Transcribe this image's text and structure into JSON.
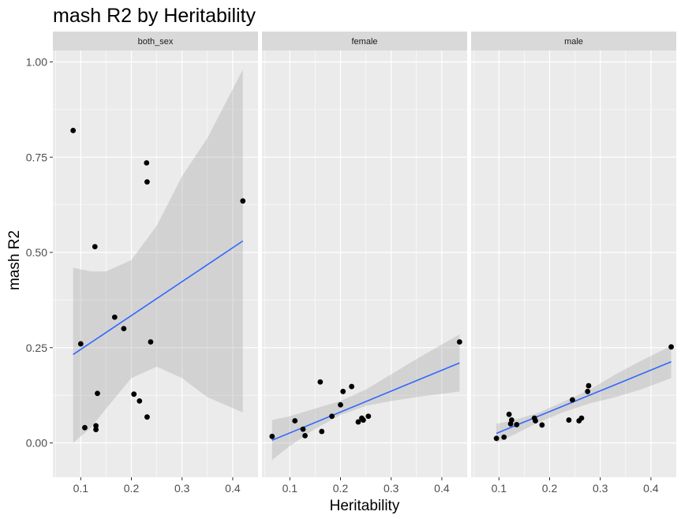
{
  "chart_data": {
    "type": "scatter",
    "title": "mash R2 by Heritability",
    "xlabel": "Heritability",
    "ylabel": "mash R2",
    "xlim": [
      0.045,
      0.45
    ],
    "ylim": [
      -0.09,
      1.03
    ],
    "x_ticks": [
      0.1,
      0.2,
      0.3,
      0.4
    ],
    "x_tick_labels": [
      "0.1",
      "0.2",
      "0.3",
      "0.4"
    ],
    "y_ticks": [
      0.0,
      0.25,
      0.5,
      0.75,
      1.0
    ],
    "y_tick_labels": [
      "0.00",
      "0.25",
      "0.50",
      "0.75",
      "1.00"
    ],
    "grid": true,
    "smooth": "linear fit with confidence band",
    "colors": {
      "panel_bg": "#ebebeb",
      "strip_bg": "#d9d9d9",
      "grid": "#ffffff",
      "point": "#000000",
      "line": "#3366ff",
      "band": "#999999"
    },
    "panels": [
      {
        "name": "both_sex",
        "points": [
          {
            "x": 0.085,
            "y": 0.82
          },
          {
            "x": 0.1,
            "y": 0.26
          },
          {
            "x": 0.108,
            "y": 0.04
          },
          {
            "x": 0.128,
            "y": 0.515
          },
          {
            "x": 0.13,
            "y": 0.045
          },
          {
            "x": 0.13,
            "y": 0.035
          },
          {
            "x": 0.133,
            "y": 0.13
          },
          {
            "x": 0.167,
            "y": 0.33
          },
          {
            "x": 0.185,
            "y": 0.3
          },
          {
            "x": 0.205,
            "y": 0.128
          },
          {
            "x": 0.216,
            "y": 0.11
          },
          {
            "x": 0.23,
            "y": 0.735
          },
          {
            "x": 0.231,
            "y": 0.685
          },
          {
            "x": 0.231,
            "y": 0.068
          },
          {
            "x": 0.238,
            "y": 0.265
          },
          {
            "x": 0.42,
            "y": 0.635
          }
        ],
        "fit": {
          "x": [
            0.085,
            0.42
          ],
          "y": [
            0.232,
            0.53
          ]
        },
        "band": {
          "x": [
            0.085,
            0.12,
            0.15,
            0.2,
            0.25,
            0.3,
            0.35,
            0.42
          ],
          "upper": [
            0.46,
            0.45,
            0.45,
            0.48,
            0.57,
            0.7,
            0.8,
            0.98
          ],
          "lower": [
            0.0,
            0.04,
            0.09,
            0.17,
            0.2,
            0.17,
            0.12,
            0.08
          ]
        }
      },
      {
        "name": "female",
        "points": [
          {
            "x": 0.065,
            "y": 0.017
          },
          {
            "x": 0.11,
            "y": 0.058
          },
          {
            "x": 0.126,
            "y": 0.036
          },
          {
            "x": 0.13,
            "y": 0.019
          },
          {
            "x": 0.16,
            "y": 0.16
          },
          {
            "x": 0.163,
            "y": 0.03
          },
          {
            "x": 0.183,
            "y": 0.07
          },
          {
            "x": 0.2,
            "y": 0.1
          },
          {
            "x": 0.205,
            "y": 0.135
          },
          {
            "x": 0.222,
            "y": 0.148
          },
          {
            "x": 0.235,
            "y": 0.055
          },
          {
            "x": 0.242,
            "y": 0.065
          },
          {
            "x": 0.245,
            "y": 0.06
          },
          {
            "x": 0.255,
            "y": 0.07
          },
          {
            "x": 0.435,
            "y": 0.265
          }
        ],
        "fit": {
          "x": [
            0.065,
            0.435
          ],
          "y": [
            0.007,
            0.21
          ]
        },
        "band": {
          "x": [
            0.065,
            0.1,
            0.15,
            0.2,
            0.25,
            0.3,
            0.35,
            0.435
          ],
          "upper": [
            0.06,
            0.07,
            0.09,
            0.11,
            0.14,
            0.18,
            0.22,
            0.285
          ],
          "lower": [
            -0.045,
            -0.008,
            0.037,
            0.073,
            0.097,
            0.11,
            0.12,
            0.135
          ]
        }
      },
      {
        "name": "male",
        "points": [
          {
            "x": 0.095,
            "y": 0.012
          },
          {
            "x": 0.11,
            "y": 0.015
          },
          {
            "x": 0.12,
            "y": 0.075
          },
          {
            "x": 0.123,
            "y": 0.05
          },
          {
            "x": 0.125,
            "y": 0.06
          },
          {
            "x": 0.135,
            "y": 0.048
          },
          {
            "x": 0.17,
            "y": 0.065
          },
          {
            "x": 0.172,
            "y": 0.058
          },
          {
            "x": 0.185,
            "y": 0.047
          },
          {
            "x": 0.238,
            "y": 0.06
          },
          {
            "x": 0.245,
            "y": 0.113
          },
          {
            "x": 0.258,
            "y": 0.058
          },
          {
            "x": 0.263,
            "y": 0.065
          },
          {
            "x": 0.275,
            "y": 0.135
          },
          {
            "x": 0.277,
            "y": 0.15
          },
          {
            "x": 0.44,
            "y": 0.252
          }
        ],
        "fit": {
          "x": [
            0.095,
            0.44
          ],
          "y": [
            0.025,
            0.213
          ]
        },
        "band": {
          "x": [
            0.095,
            0.13,
            0.18,
            0.23,
            0.28,
            0.33,
            0.38,
            0.44
          ],
          "upper": [
            0.05,
            0.06,
            0.08,
            0.11,
            0.14,
            0.18,
            0.215,
            0.255
          ],
          "lower": [
            0.0,
            0.022,
            0.055,
            0.082,
            0.104,
            0.12,
            0.14,
            0.17
          ]
        }
      }
    ]
  }
}
